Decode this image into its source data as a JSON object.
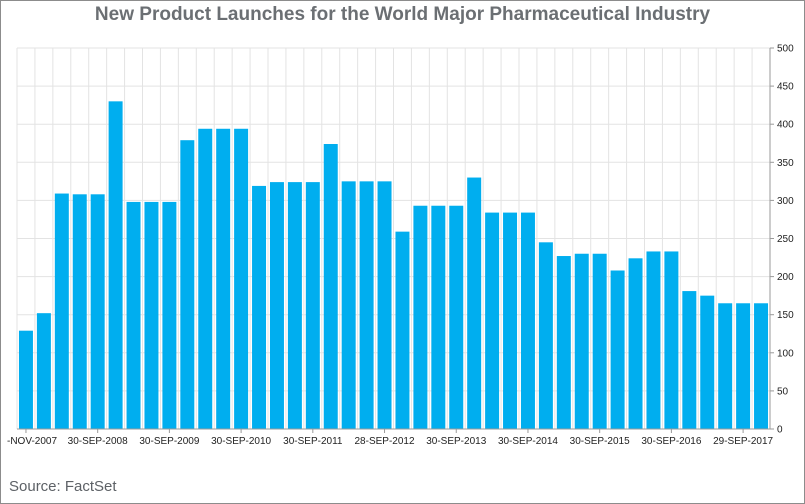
{
  "chart_data": {
    "type": "bar",
    "title": "New Product Launches for the World Major Pharmaceutical Industry",
    "source": "Source: FactSet",
    "color": "#00aeef",
    "ylim": [
      0,
      500
    ],
    "y_ticks": [
      0,
      50,
      100,
      150,
      200,
      250,
      300,
      350,
      400,
      450,
      500
    ],
    "y_axis_position": "right",
    "grid": true,
    "x_tick_labels": [
      {
        "index": 0,
        "label": "-NOV-2007"
      },
      {
        "index": 4,
        "label": "30-SEP-2008"
      },
      {
        "index": 8,
        "label": "30-SEP-2009"
      },
      {
        "index": 12,
        "label": "30-SEP-2010"
      },
      {
        "index": 16,
        "label": "30-SEP-2011"
      },
      {
        "index": 20,
        "label": "28-SEP-2012"
      },
      {
        "index": 24,
        "label": "30-SEP-2013"
      },
      {
        "index": 28,
        "label": "30-SEP-2014"
      },
      {
        "index": 32,
        "label": "30-SEP-2015"
      },
      {
        "index": 36,
        "label": "30-SEP-2016"
      },
      {
        "index": 40,
        "label": "29-SEP-2017"
      }
    ],
    "values": [
      129,
      152,
      309,
      308,
      308,
      430,
      298,
      298,
      298,
      379,
      394,
      394,
      394,
      319,
      324,
      324,
      324,
      374,
      325,
      325,
      325,
      259,
      293,
      293,
      293,
      330,
      284,
      284,
      284,
      245,
      227,
      230,
      230,
      208,
      224,
      233,
      233,
      181,
      175,
      165,
      165,
      165
    ]
  }
}
